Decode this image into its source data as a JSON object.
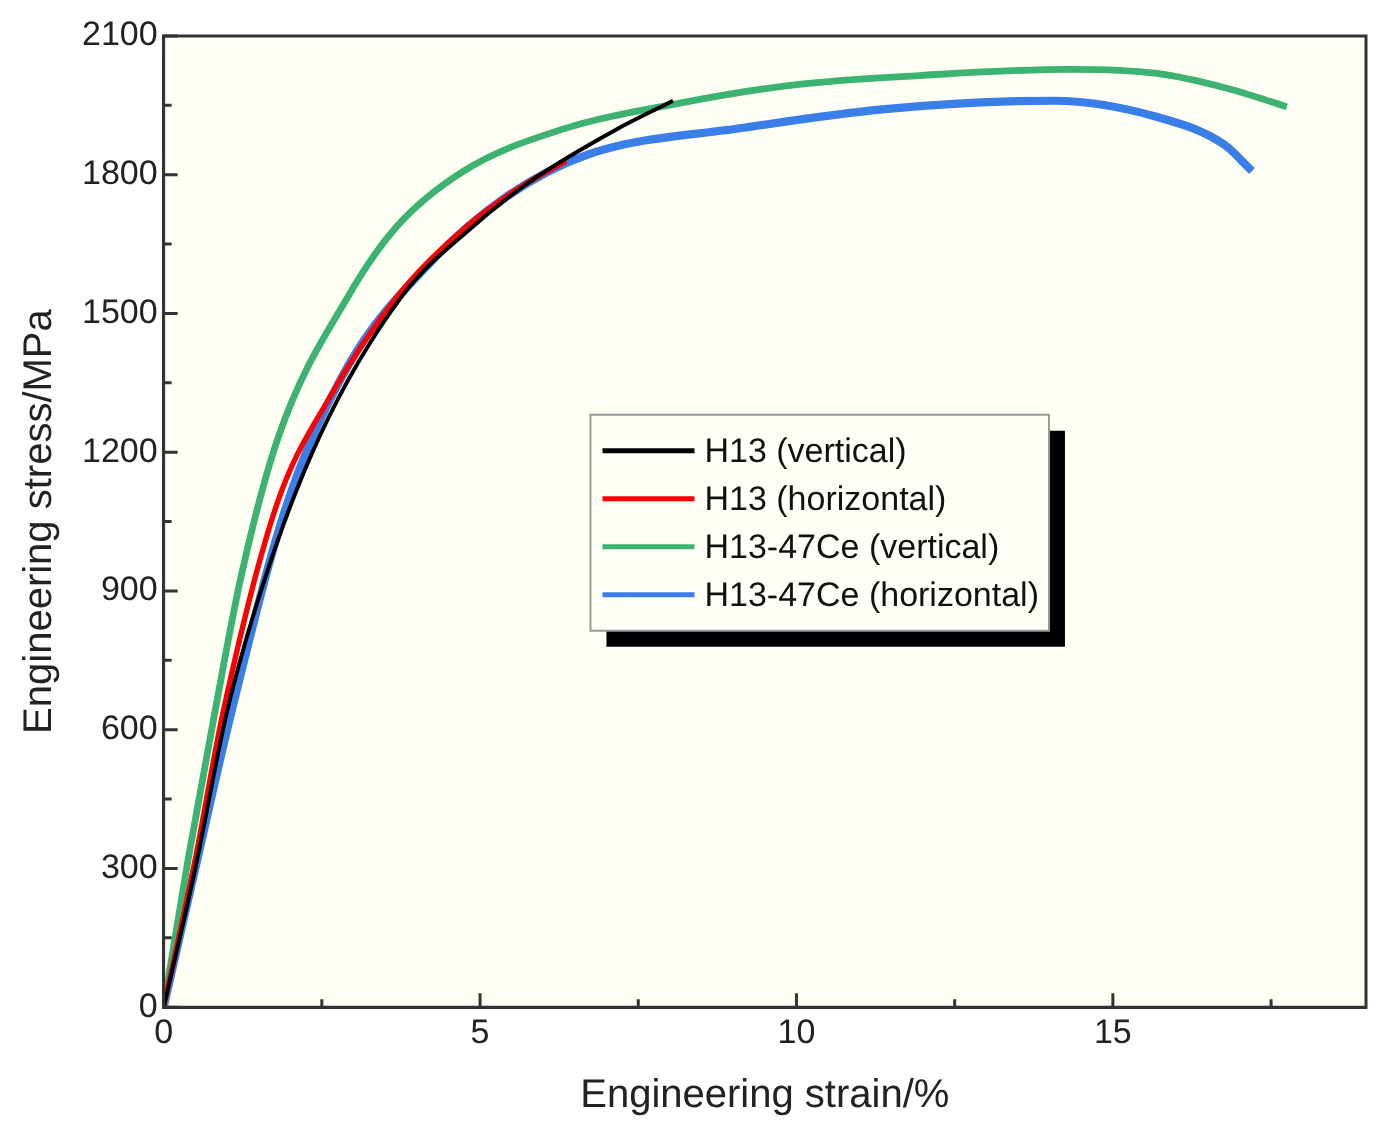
{
  "chart_data": {
    "type": "line",
    "xlabel": "Engineering strain/%",
    "ylabel": "Engineering stress/MPa",
    "xlim": [
      0,
      19
    ],
    "ylim": [
      0,
      2100
    ],
    "xticks": [
      0,
      {
        "value": 2.5,
        "label": null
      },
      5,
      {
        "value": 7.5,
        "label": null
      },
      10,
      {
        "value": 12.5,
        "label": null
      },
      15,
      {
        "value": 17.5,
        "label": null
      }
    ],
    "yticks": [
      0,
      {
        "value": 150,
        "label": null
      },
      300,
      {
        "value": 450,
        "label": null
      },
      600,
      {
        "value": 750,
        "label": null
      },
      900,
      {
        "value": 1050,
        "label": null
      },
      1200,
      {
        "value": 1350,
        "label": null
      },
      1500,
      {
        "value": 1650,
        "label": null
      },
      1800,
      {
        "value": 1950,
        "label": null
      },
      2100
    ],
    "grid": false,
    "legend": "center",
    "marker": "none",
    "line_style": "solid",
    "series": [
      {
        "name": "H13 (vertical)",
        "color": "#000000",
        "x": [
          0,
          0.5,
          1.0,
          1.62,
          2.47,
          3.77,
          4.87,
          5.84,
          7.14,
          8.05
        ],
        "values": [
          0,
          300,
          638,
          935,
          1236,
          1538,
          1686,
          1790,
          1897,
          1960
        ]
      },
      {
        "name": "H13 (horizontal)",
        "color": "#ff0000",
        "x": [
          0,
          0.5,
          0.94,
          1.79,
          2.6,
          3.7,
          4.77,
          5.6,
          6.36
        ],
        "values": [
          0,
          320,
          638,
          1088,
          1313,
          1538,
          1686,
          1770,
          1830
        ]
      },
      {
        "name": "H13-47Ce (vertical)",
        "color": "#3cb371",
        "x": [
          0,
          0.4,
          0.81,
          1.23,
          1.82,
          2.92,
          3.67,
          4.74,
          6.27,
          8.2,
          10,
          12,
          14.3,
          15.7,
          16.8,
          17.75
        ],
        "values": [
          0,
          330,
          638,
          935,
          1236,
          1538,
          1686,
          1808,
          1897,
          1956,
          1995,
          2015,
          2028,
          2019,
          1987,
          1947
        ]
      },
      {
        "name": "H13-47Ce (horizontal)",
        "color": "#3a7fe8",
        "x": [
          0,
          0.5,
          1.07,
          1.95,
          2.92,
          4.22,
          5.39,
          6.69,
          9.19,
          11.4,
          14.06,
          15.7,
          16.75,
          17.2
        ],
        "values": [
          0,
          300,
          638,
          1088,
          1388,
          1611,
          1750,
          1843,
          1902,
          1942,
          1960,
          1925,
          1866,
          1808
        ]
      }
    ]
  }
}
